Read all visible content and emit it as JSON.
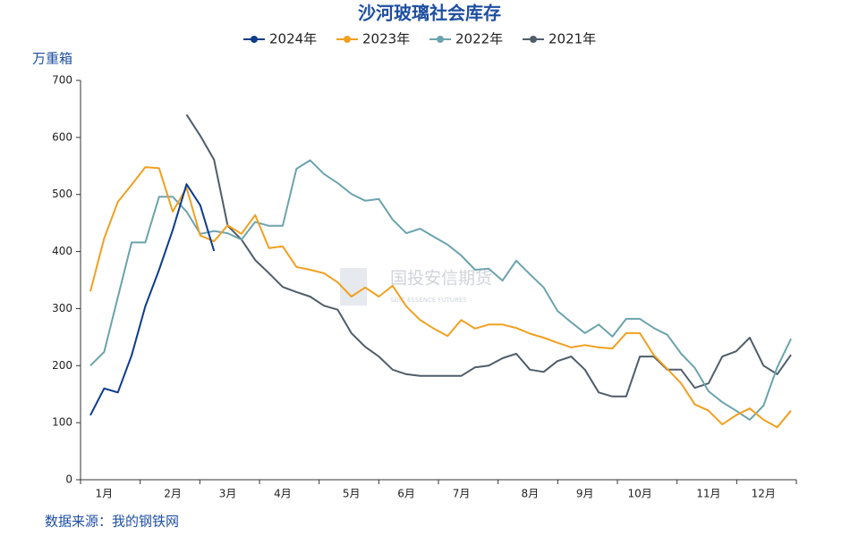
{
  "chart_data": {
    "type": "line",
    "title": "沙河玻璃社会库存",
    "y_label": "万重箱",
    "source": "数据来源：我的钢铁网",
    "watermark": "国投安信期货",
    "watermark_sub": "SDIC ESSENCE FUTURES",
    "categories": [
      null,
      "1月",
      null,
      null,
      null,
      null,
      "2月",
      null,
      null,
      null,
      "3月",
      null,
      null,
      null,
      "4月",
      null,
      null,
      null,
      null,
      "5月",
      null,
      null,
      null,
      "6月",
      null,
      null,
      null,
      "7月",
      null,
      null,
      null,
      null,
      "8月",
      null,
      null,
      null,
      "9月",
      null,
      null,
      null,
      "10月",
      null,
      null,
      null,
      null,
      "11月",
      null,
      null,
      null,
      "12月",
      null,
      null
    ],
    "ylim": [
      0,
      700
    ],
    "yticks": [
      0,
      100,
      200,
      300,
      400,
      500,
      600,
      700
    ],
    "series": [
      {
        "name": "2024年",
        "color": "#0d3b8e",
        "values": [
          113,
          160,
          153,
          218,
          304,
          368,
          438,
          518,
          481,
          401,
          null,
          null,
          null,
          null,
          null,
          null,
          null,
          null,
          null,
          null,
          null,
          null,
          null,
          null,
          null,
          null,
          null,
          null,
          null,
          null,
          null,
          null,
          null,
          null,
          null,
          null,
          null,
          null,
          null,
          null,
          null,
          null,
          null,
          null,
          null,
          null,
          null,
          null,
          null,
          null,
          null,
          null
        ]
      },
      {
        "name": "2023年",
        "color": "#f0a020",
        "values": [
          330,
          423,
          487,
          517,
          548,
          546,
          470,
          512,
          428,
          418,
          446,
          431,
          464,
          406,
          409,
          373,
          368,
          362,
          346,
          321,
          337,
          321,
          340,
          304,
          280,
          265,
          252,
          280,
          265,
          272,
          272,
          266,
          256,
          249,
          240,
          232,
          236,
          232,
          230,
          257,
          257,
          219,
          194,
          169,
          132,
          121,
          97,
          113,
          125,
          105,
          92,
          121
        ]
      },
      {
        "name": "2022年",
        "color": "#6ba3ad",
        "values": [
          200,
          224,
          320,
          416,
          416,
          496,
          496,
          470,
          431,
          436,
          432,
          421,
          452,
          445,
          445,
          545,
          560,
          536,
          520,
          501,
          489,
          492,
          456,
          432,
          440,
          426,
          412,
          393,
          368,
          370,
          349,
          384,
          360,
          337,
          296,
          276,
          257,
          272,
          251,
          282,
          282,
          266,
          254,
          221,
          196,
          155,
          136,
          121,
          105,
          130,
          197,
          247
        ]
      },
      {
        "name": "2021年",
        "color": "#4f5d6a",
        "values": [
          null,
          null,
          null,
          null,
          null,
          null,
          null,
          640,
          603,
          561,
          445,
          421,
          385,
          362,
          338,
          329,
          321,
          305,
          298,
          257,
          233,
          216,
          193,
          185,
          182,
          182,
          182,
          182,
          197,
          200,
          213,
          221,
          193,
          189,
          208,
          216,
          193,
          153,
          146,
          146,
          216,
          216,
          193,
          193,
          161,
          169,
          216,
          225,
          249,
          200,
          185,
          219
        ]
      }
    ]
  }
}
